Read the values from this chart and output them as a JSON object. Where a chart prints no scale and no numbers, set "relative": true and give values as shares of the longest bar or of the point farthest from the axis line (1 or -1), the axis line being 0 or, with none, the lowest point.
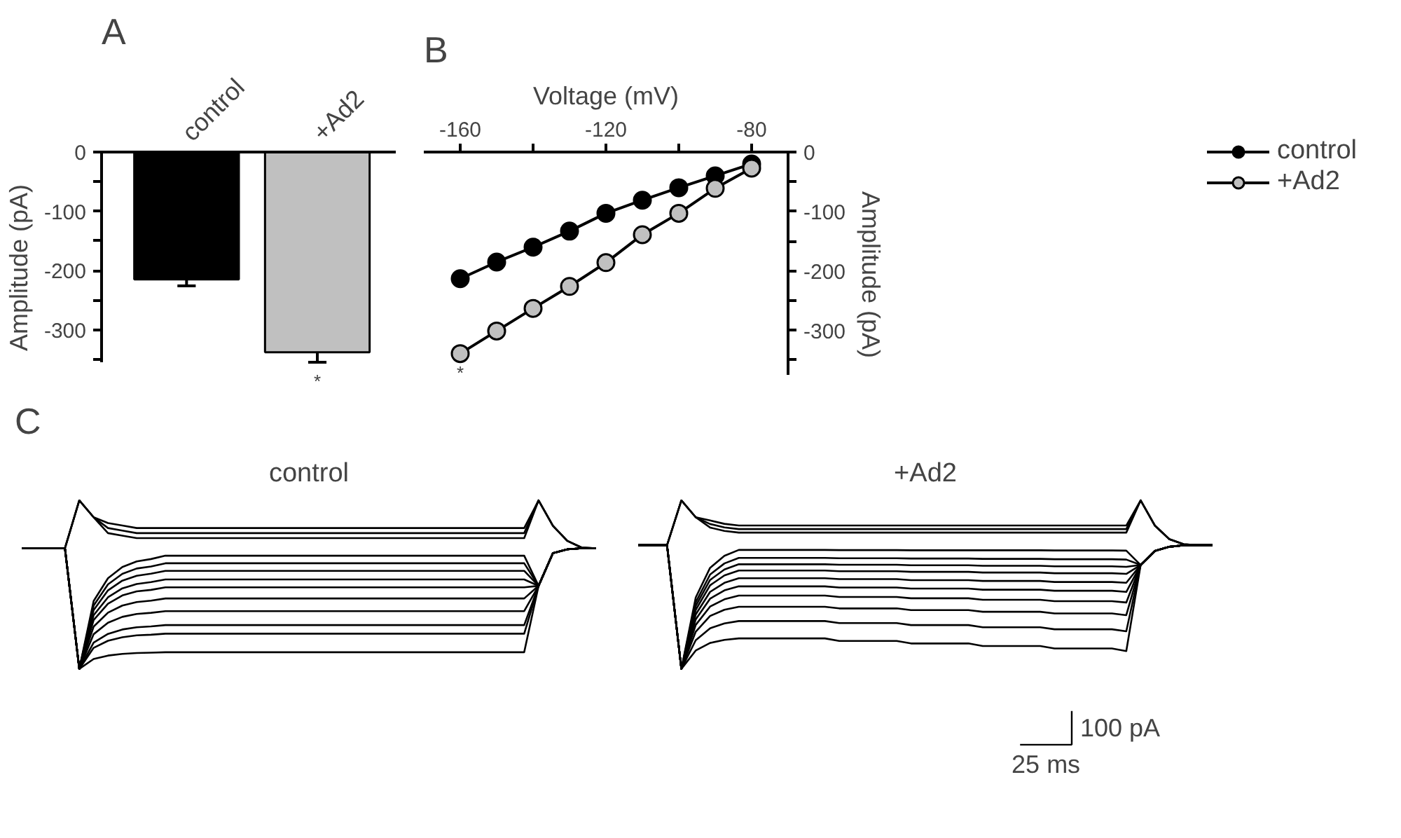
{
  "chart_data": [
    {
      "type": "bar",
      "ylabel": "Amplitude (pA)",
      "categories": [
        "control",
        "+Ad2"
      ],
      "values": [
        -215,
        -338
      ],
      "colors": [
        "#000000",
        "#c0c0c0"
      ],
      "errors": [
        11,
        17
      ],
      "ylim": [
        -355,
        0
      ],
      "yticks": [
        0,
        {
          "value": -50,
          "label": null
        },
        -100,
        {
          "value": -150,
          "label": null
        },
        -200,
        {
          "value": -250,
          "label": null
        },
        -300,
        {
          "value": -350,
          "label": null
        }
      ],
      "annotations": [
        "A",
        "*"
      ]
    },
    {
      "type": "line",
      "xlabel": "Voltage (mV)",
      "ylabel": "Amplitude (pA)",
      "x": [
        -160,
        -150,
        -140,
        -130,
        -120,
        -110,
        -100,
        -90,
        -80
      ],
      "series": [
        {
          "name": "control",
          "color": "#000000",
          "values": [
            -213,
            -185,
            -160,
            -133,
            -103,
            -81,
            -60,
            -40,
            -20
          ]
        },
        {
          "name": "+Ad2",
          "color": "#c0c0c0",
          "values": [
            -339,
            -301,
            -263,
            -226,
            -186,
            -139,
            -103,
            -61,
            -27
          ]
        }
      ],
      "xlim": [
        -170,
        -70
      ],
      "xticks": [
        -160,
        {
          "value": -140,
          "label": null
        },
        -120,
        {
          "value": -100,
          "label": null
        },
        -80
      ],
      "ylim": [
        -375,
        0
      ],
      "yticks": [
        0,
        {
          "value": -50,
          "label": null
        },
        -100,
        {
          "value": -150,
          "label": null
        },
        -200,
        {
          "value": -250,
          "label": null
        },
        -300,
        {
          "value": -350,
          "label": null
        }
      ],
      "marker": "circle",
      "legend": "top right",
      "annotations": [
        "B",
        "*"
      ]
    },
    {
      "type": "line",
      "title": "control",
      "relative": true,
      "tick_labels": false,
      "annotations": [
        "C"
      ],
      "categories": [
        null,
        null,
        null,
        null,
        null,
        null,
        null,
        null,
        null,
        null,
        null,
        null,
        null,
        null,
        null,
        null,
        null,
        null,
        null,
        null,
        null,
        null,
        null,
        null,
        null,
        null,
        null,
        null,
        null,
        null,
        null,
        null,
        null,
        null,
        null,
        null,
        null,
        null,
        null,
        null,
        null
      ],
      "series": [
        {
          "color": "#000000",
          "values": [
            0.716,
            0.716,
            0.716,
            0.716,
            1,
            0.9,
            0.866,
            0.851,
            0.836,
            0.836,
            0.836,
            0.836,
            0.836,
            0.836,
            0.836,
            0.836,
            0.836,
            0.836,
            0.836,
            0.836,
            0.836,
            0.836,
            0.836,
            0.836,
            0.836,
            0.836,
            0.836,
            0.836,
            0.836,
            0.836,
            0.836,
            0.836,
            0.836,
            0.836,
            0.836,
            0.836,
            1,
            0.85,
            0.76,
            0.72,
            0.716
          ]
        },
        {
          "color": "#000000",
          "values": [
            0.716,
            0.716,
            0.716,
            0.716,
            1,
            0.9,
            0.836,
            0.821,
            0.806,
            0.806,
            0.806,
            0.806,
            0.806,
            0.806,
            0.806,
            0.806,
            0.806,
            0.806,
            0.806,
            0.806,
            0.806,
            0.806,
            0.806,
            0.806,
            0.806,
            0.806,
            0.806,
            0.806,
            0.806,
            0.806,
            0.806,
            0.806,
            0.806,
            0.806,
            0.806,
            0.806,
            1,
            0.85,
            0.76,
            0.72,
            0.716
          ]
        },
        {
          "color": "#000000",
          "values": [
            0.716,
            0.716,
            0.716,
            0.716,
            1,
            0.9,
            0.806,
            0.791,
            0.776,
            0.776,
            0.776,
            0.776,
            0.776,
            0.776,
            0.776,
            0.776,
            0.776,
            0.776,
            0.776,
            0.776,
            0.776,
            0.776,
            0.776,
            0.776,
            0.776,
            0.776,
            0.776,
            0.776,
            0.776,
            0.776,
            0.776,
            0.776,
            0.776,
            0.776,
            0.776,
            0.776,
            1,
            0.85,
            0.76,
            0.72,
            0.716
          ]
        },
        {
          "color": "#000000",
          "values": [
            0.716,
            0.716,
            0.716,
            0.716,
            0,
            0.403,
            0.538,
            0.605,
            0.638,
            0.652,
            0.672,
            0.672,
            0.672,
            0.672,
            0.672,
            0.672,
            0.672,
            0.672,
            0.672,
            0.672,
            0.672,
            0.672,
            0.672,
            0.672,
            0.672,
            0.672,
            0.672,
            0.672,
            0.672,
            0.672,
            0.672,
            0.672,
            0.672,
            0.672,
            0.672,
            0.672,
            0.493,
            0.687,
            0.71,
            0.716,
            0.716
          ]
        },
        {
          "color": "#000000",
          "values": [
            0.716,
            0.716,
            0.716,
            0.716,
            0,
            0.376,
            0.502,
            0.564,
            0.596,
            0.608,
            0.627,
            0.627,
            0.627,
            0.627,
            0.627,
            0.627,
            0.627,
            0.627,
            0.627,
            0.627,
            0.627,
            0.627,
            0.627,
            0.627,
            0.627,
            0.627,
            0.627,
            0.627,
            0.627,
            0.627,
            0.627,
            0.627,
            0.627,
            0.627,
            0.627,
            0.627,
            0.493,
            0.687,
            0.71,
            0.716,
            0.716
          ]
        },
        {
          "color": "#000000",
          "values": [
            0.716,
            0.716,
            0.716,
            0.716,
            0,
            0.349,
            0.466,
            0.524,
            0.553,
            0.565,
            0.582,
            0.582,
            0.582,
            0.582,
            0.582,
            0.582,
            0.582,
            0.582,
            0.582,
            0.582,
            0.582,
            0.582,
            0.582,
            0.582,
            0.582,
            0.582,
            0.582,
            0.582,
            0.582,
            0.582,
            0.582,
            0.582,
            0.582,
            0.582,
            0.582,
            0.582,
            0.493,
            0.687,
            0.71,
            0.716,
            0.716
          ]
        },
        {
          "color": "#000000",
          "values": [
            0.716,
            0.716,
            0.716,
            0.716,
            0,
            0.319,
            0.425,
            0.478,
            0.504,
            0.515,
            0.531,
            0.531,
            0.531,
            0.531,
            0.531,
            0.531,
            0.531,
            0.531,
            0.531,
            0.531,
            0.531,
            0.531,
            0.531,
            0.531,
            0.531,
            0.531,
            0.531,
            0.531,
            0.531,
            0.531,
            0.531,
            0.531,
            0.531,
            0.531,
            0.531,
            0.531,
            0.493,
            0.687,
            0.71,
            0.716,
            0.716
          ]
        },
        {
          "color": "#000000",
          "values": [
            0.716,
            0.716,
            0.716,
            0.716,
            0,
            0.29,
            0.387,
            0.436,
            0.46,
            0.469,
            0.484,
            0.484,
            0.484,
            0.484,
            0.484,
            0.484,
            0.484,
            0.484,
            0.484,
            0.484,
            0.484,
            0.484,
            0.484,
            0.484,
            0.484,
            0.484,
            0.484,
            0.484,
            0.484,
            0.484,
            0.484,
            0.484,
            0.484,
            0.484,
            0.484,
            0.484,
            0.493,
            0.687,
            0.71,
            0.716,
            0.716
          ]
        },
        {
          "color": "#000000",
          "values": [
            0.716,
            0.716,
            0.716,
            0.716,
            0,
            0.251,
            0.334,
            0.376,
            0.397,
            0.405,
            0.418,
            0.418,
            0.418,
            0.418,
            0.418,
            0.418,
            0.418,
            0.418,
            0.418,
            0.418,
            0.418,
            0.418,
            0.418,
            0.418,
            0.418,
            0.418,
            0.418,
            0.418,
            0.418,
            0.418,
            0.418,
            0.418,
            0.418,
            0.418,
            0.418,
            0.418,
            0.493,
            0.687,
            0.71,
            0.716,
            0.716
          ]
        },
        {
          "color": "#000000",
          "values": [
            0.716,
            0.716,
            0.716,
            0.716,
            0,
            0.206,
            0.274,
            0.309,
            0.326,
            0.333,
            0.343,
            0.343,
            0.343,
            0.343,
            0.343,
            0.343,
            0.343,
            0.343,
            0.343,
            0.343,
            0.343,
            0.343,
            0.343,
            0.343,
            0.343,
            0.343,
            0.343,
            0.343,
            0.343,
            0.343,
            0.343,
            0.343,
            0.343,
            0.343,
            0.343,
            0.343,
            0.493,
            0.687,
            0.71,
            0.716,
            0.716
          ]
        },
        {
          "color": "#000000",
          "values": [
            0.716,
            0.716,
            0.716,
            0.716,
            0,
            0.156,
            0.208,
            0.234,
            0.247,
            0.252,
            0.26,
            0.26,
            0.26,
            0.26,
            0.26,
            0.26,
            0.26,
            0.26,
            0.26,
            0.26,
            0.26,
            0.26,
            0.26,
            0.26,
            0.26,
            0.26,
            0.26,
            0.26,
            0.26,
            0.26,
            0.26,
            0.26,
            0.26,
            0.26,
            0.26,
            0.26,
            0.493,
            0.687,
            0.71,
            0.716,
            0.716
          ]
        },
        {
          "color": "#000000",
          "values": [
            0.716,
            0.716,
            0.716,
            0.716,
            0,
            0.125,
            0.167,
            0.188,
            0.199,
            0.203,
            0.209,
            0.209,
            0.209,
            0.209,
            0.209,
            0.209,
            0.209,
            0.209,
            0.209,
            0.209,
            0.209,
            0.209,
            0.209,
            0.209,
            0.209,
            0.209,
            0.209,
            0.209,
            0.209,
            0.209,
            0.209,
            0.209,
            0.209,
            0.209,
            0.209,
            0.209,
            0.493,
            0.687,
            0.71,
            0.716,
            0.716
          ]
        },
        {
          "color": "#000000",
          "values": [
            0.716,
            0.716,
            0.716,
            0.716,
            0,
            0.059,
            0.079,
            0.089,
            0.094,
            0.096,
            0.099,
            0.099,
            0.099,
            0.099,
            0.099,
            0.099,
            0.099,
            0.099,
            0.099,
            0.099,
            0.099,
            0.099,
            0.099,
            0.099,
            0.099,
            0.099,
            0.099,
            0.099,
            0.099,
            0.099,
            0.099,
            0.099,
            0.099,
            0.099,
            0.099,
            0.099,
            0.493,
            0.687,
            0.71,
            0.716,
            0.716
          ]
        }
      ]
    },
    {
      "type": "line",
      "title": "+Ad2",
      "relative": true,
      "tick_labels": false,
      "annotations": [
        "100 pA",
        "25 ms"
      ],
      "categories": [
        null,
        null,
        null,
        null,
        null,
        null,
        null,
        null,
        null,
        null,
        null,
        null,
        null,
        null,
        null,
        null,
        null,
        null,
        null,
        null,
        null,
        null,
        null,
        null,
        null,
        null,
        null,
        null,
        null,
        null,
        null,
        null,
        null,
        null,
        null,
        null,
        null,
        null,
        null,
        null,
        null
      ],
      "series": [
        {
          "color": "#000000",
          "values": [
            0.734,
            0.734,
            0.734,
            1,
            0.9,
            0.881,
            0.861,
            0.851,
            0.851,
            0.851,
            0.851,
            0.851,
            0.851,
            0.851,
            0.851,
            0.851,
            0.851,
            0.851,
            0.851,
            0.851,
            0.851,
            0.851,
            0.851,
            0.851,
            0.851,
            0.851,
            0.851,
            0.851,
            0.851,
            0.851,
            0.851,
            0.851,
            0.851,
            0.851,
            0.851,
            1,
            0.85,
            0.77,
            0.74,
            0.734,
            0.734
          ]
        },
        {
          "color": "#000000",
          "values": [
            0.734,
            0.734,
            0.734,
            1,
            0.9,
            0.86,
            0.84,
            0.83,
            0.83,
            0.83,
            0.83,
            0.83,
            0.83,
            0.83,
            0.83,
            0.83,
            0.83,
            0.83,
            0.83,
            0.83,
            0.83,
            0.83,
            0.83,
            0.83,
            0.83,
            0.83,
            0.83,
            0.83,
            0.83,
            0.83,
            0.83,
            0.83,
            0.83,
            0.83,
            0.83,
            1,
            0.85,
            0.77,
            0.74,
            0.734,
            0.734
          ]
        },
        {
          "color": "#000000",
          "values": [
            0.734,
            0.734,
            0.734,
            1,
            0.9,
            0.839,
            0.819,
            0.809,
            0.809,
            0.809,
            0.809,
            0.809,
            0.809,
            0.809,
            0.809,
            0.809,
            0.809,
            0.809,
            0.809,
            0.809,
            0.809,
            0.809,
            0.809,
            0.809,
            0.809,
            0.809,
            0.809,
            0.809,
            0.809,
            0.809,
            0.809,
            0.809,
            0.809,
            0.809,
            0.809,
            1,
            0.85,
            0.77,
            0.74,
            0.734,
            0.734
          ]
        },
        {
          "color": "#000000",
          "values": [
            0.734,
            0.734,
            0.734,
            0,
            0.424,
            0.6,
            0.671,
            0.706,
            0.706,
            0.706,
            0.706,
            0.706,
            0.706,
            0.706,
            0.705,
            0.705,
            0.705,
            0.705,
            0.705,
            0.704,
            0.704,
            0.704,
            0.704,
            0.704,
            0.704,
            0.704,
            0.704,
            0.704,
            0.704,
            0.703,
            0.703,
            0.703,
            0.703,
            0.703,
            0.702,
            0.617,
            0.7,
            0.725,
            0.734,
            0.734,
            0.734
          ]
        },
        {
          "color": "#000000",
          "values": [
            0.734,
            0.734,
            0.734,
            0,
            0.395,
            0.56,
            0.626,
            0.659,
            0.659,
            0.659,
            0.659,
            0.659,
            0.659,
            0.659,
            0.657,
            0.657,
            0.657,
            0.657,
            0.657,
            0.655,
            0.655,
            0.655,
            0.655,
            0.655,
            0.653,
            0.653,
            0.653,
            0.653,
            0.653,
            0.651,
            0.651,
            0.651,
            0.651,
            0.651,
            0.649,
            0.617,
            0.7,
            0.725,
            0.734,
            0.734,
            0.734
          ]
        },
        {
          "color": "#000000",
          "values": [
            0.734,
            0.734,
            0.734,
            0,
            0.373,
            0.528,
            0.59,
            0.621,
            0.621,
            0.621,
            0.621,
            0.621,
            0.621,
            0.621,
            0.618,
            0.618,
            0.618,
            0.618,
            0.618,
            0.615,
            0.615,
            0.615,
            0.615,
            0.615,
            0.612,
            0.612,
            0.612,
            0.612,
            0.612,
            0.609,
            0.609,
            0.609,
            0.609,
            0.609,
            0.606,
            0.617,
            0.7,
            0.725,
            0.734,
            0.734,
            0.734
          ]
        },
        {
          "color": "#000000",
          "values": [
            0.734,
            0.734,
            0.734,
            0,
            0.35,
            0.496,
            0.555,
            0.584,
            0.584,
            0.584,
            0.584,
            0.584,
            0.584,
            0.584,
            0.58,
            0.58,
            0.58,
            0.58,
            0.58,
            0.576,
            0.576,
            0.576,
            0.576,
            0.576,
            0.572,
            0.572,
            0.572,
            0.572,
            0.572,
            0.568,
            0.568,
            0.568,
            0.568,
            0.568,
            0.564,
            0.617,
            0.7,
            0.725,
            0.734,
            0.734,
            0.734
          ]
        },
        {
          "color": "#000000",
          "values": [
            0.734,
            0.734,
            0.734,
            0,
            0.323,
            0.457,
            0.511,
            0.538,
            0.538,
            0.538,
            0.538,
            0.538,
            0.538,
            0.538,
            0.533,
            0.533,
            0.533,
            0.533,
            0.533,
            0.527,
            0.527,
            0.527,
            0.527,
            0.527,
            0.522,
            0.522,
            0.522,
            0.522,
            0.522,
            0.516,
            0.516,
            0.516,
            0.516,
            0.516,
            0.511,
            0.617,
            0.7,
            0.725,
            0.734,
            0.734,
            0.734
          ]
        },
        {
          "color": "#000000",
          "values": [
            0.734,
            0.734,
            0.734,
            0,
            0.294,
            0.417,
            0.466,
            0.49,
            0.49,
            0.49,
            0.49,
            0.49,
            0.49,
            0.49,
            0.483,
            0.483,
            0.483,
            0.483,
            0.483,
            0.477,
            0.477,
            0.477,
            0.477,
            0.477,
            0.47,
            0.47,
            0.47,
            0.47,
            0.47,
            0.464,
            0.464,
            0.464,
            0.464,
            0.464,
            0.457,
            0.617,
            0.7,
            0.725,
            0.734,
            0.734,
            0.734
          ]
        },
        {
          "color": "#000000",
          "values": [
            0.734,
            0.734,
            0.734,
            0,
            0.261,
            0.37,
            0.413,
            0.435,
            0.435,
            0.435,
            0.435,
            0.435,
            0.435,
            0.435,
            0.427,
            0.427,
            0.427,
            0.427,
            0.427,
            0.419,
            0.419,
            0.419,
            0.419,
            0.419,
            0.41,
            0.41,
            0.41,
            0.41,
            0.41,
            0.402,
            0.402,
            0.402,
            0.402,
            0.402,
            0.394,
            0.617,
            0.7,
            0.725,
            0.734,
            0.734,
            0.734
          ]
        },
        {
          "color": "#000000",
          "values": [
            0.734,
            0.734,
            0.734,
            0,
            0.221,
            0.314,
            0.351,
            0.369,
            0.369,
            0.369,
            0.369,
            0.369,
            0.369,
            0.369,
            0.359,
            0.359,
            0.359,
            0.359,
            0.359,
            0.349,
            0.349,
            0.349,
            0.349,
            0.349,
            0.339,
            0.339,
            0.339,
            0.339,
            0.339,
            0.329,
            0.329,
            0.329,
            0.329,
            0.329,
            0.319,
            0.617,
            0.7,
            0.725,
            0.734,
            0.734,
            0.734
          ]
        },
        {
          "color": "#000000",
          "values": [
            0.734,
            0.734,
            0.734,
            0,
            0.17,
            0.241,
            0.27,
            0.284,
            0.284,
            0.284,
            0.284,
            0.284,
            0.284,
            0.284,
            0.272,
            0.272,
            0.272,
            0.272,
            0.272,
            0.26,
            0.26,
            0.26,
            0.26,
            0.26,
            0.247,
            0.247,
            0.247,
            0.247,
            0.247,
            0.235,
            0.235,
            0.235,
            0.235,
            0.235,
            0.223,
            0.617,
            0.7,
            0.725,
            0.734,
            0.734,
            0.734
          ]
        },
        {
          "color": "#000000",
          "values": [
            0.734,
            0.734,
            0.734,
            0,
            0.109,
            0.154,
            0.172,
            0.181,
            0.181,
            0.181,
            0.181,
            0.181,
            0.181,
            0.181,
            0.166,
            0.166,
            0.166,
            0.166,
            0.166,
            0.151,
            0.151,
            0.151,
            0.151,
            0.151,
            0.136,
            0.136,
            0.136,
            0.136,
            0.136,
            0.121,
            0.121,
            0.121,
            0.121,
            0.121,
            0.106,
            0.617,
            0.7,
            0.725,
            0.734,
            0.734,
            0.734
          ]
        }
      ]
    }
  ]
}
